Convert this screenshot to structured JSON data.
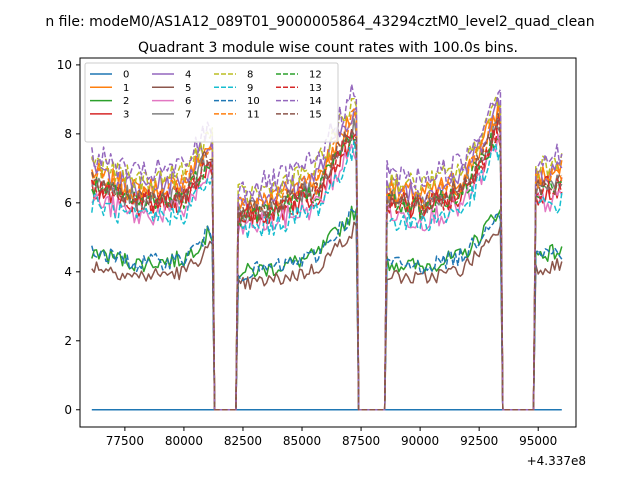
{
  "figure": {
    "suptitle": "n file: modeM0/AS1A12_089T01_9000005864_43294cztM0_level2_quad_clean"
  },
  "chart_data": {
    "type": "line",
    "title": "Quadrant 3 module wise count rates with 100.0s bins.",
    "xlabel": "",
    "ylabel": "",
    "offset_text": "+4.337e8",
    "xlim": [
      75600,
      96600
    ],
    "ylim": [
      -0.5,
      10.2
    ],
    "x_ticks": [
      77500,
      80000,
      82500,
      85000,
      87500,
      90000,
      92500,
      95000
    ],
    "x_tick_labels": [
      "77500",
      "80000",
      "82500",
      "85000",
      "87500",
      "90000",
      "92500",
      "95000"
    ],
    "y_ticks": [
      0,
      2,
      4,
      6,
      8,
      10
    ],
    "y_tick_labels": [
      "0",
      "2",
      "4",
      "6",
      "8",
      "10"
    ],
    "grid": false,
    "legend": {
      "placement": "top-left",
      "columns": 4
    },
    "x_start": 76100,
    "x_step": 100,
    "gaps": [
      [
        81200,
        82300
      ],
      [
        87300,
        88600
      ],
      [
        93400,
        94900
      ]
    ],
    "envelope": {
      "x": [
        76100,
        78000,
        80000,
        81100,
        82300,
        84000,
        85600,
        87200,
        88600,
        90000,
        91800,
        92400,
        93300,
        94900,
        96000
      ],
      "y": [
        1.0,
        0.92,
        0.95,
        1.12,
        0.86,
        0.9,
        0.97,
        1.25,
        0.93,
        0.9,
        0.97,
        1.07,
        1.26,
        0.98,
        1.0
      ]
    },
    "series": [
      {
        "name": "0",
        "color": "#1f77b4",
        "dash": "solid",
        "baseline": 0,
        "noise": 0
      },
      {
        "name": "1",
        "color": "#ff7f0e",
        "dash": "solid",
        "baseline": 6.9,
        "noise": 0.35
      },
      {
        "name": "2",
        "color": "#2ca02c",
        "dash": "solid",
        "baseline": 4.6,
        "noise": 0.25
      },
      {
        "name": "3",
        "color": "#d62728",
        "dash": "solid",
        "baseline": 6.4,
        "noise": 0.35
      },
      {
        "name": "4",
        "color": "#9467bd",
        "dash": "solid",
        "baseline": 7.0,
        "noise": 0.35
      },
      {
        "name": "5",
        "color": "#8c564b",
        "dash": "solid",
        "baseline": 4.2,
        "noise": 0.22
      },
      {
        "name": "6",
        "color": "#e377c2",
        "dash": "solid",
        "baseline": 6.1,
        "noise": 0.35
      },
      {
        "name": "7",
        "color": "#7f7f7f",
        "dash": "solid",
        "baseline": 6.6,
        "noise": 0.33
      },
      {
        "name": "8",
        "color": "#bcbd22",
        "dash": "dashed",
        "baseline": 7.2,
        "noise": 0.35
      },
      {
        "name": "9",
        "color": "#17becf",
        "dash": "dashed",
        "baseline": 6.0,
        "noise": 0.33
      },
      {
        "name": "10",
        "color": "#1f77b4",
        "dash": "dashed",
        "baseline": 4.6,
        "noise": 0.25
      },
      {
        "name": "11",
        "color": "#ff7f0e",
        "dash": "dashed",
        "baseline": 6.8,
        "noise": 0.35
      },
      {
        "name": "12",
        "color": "#2ca02c",
        "dash": "dashed",
        "baseline": 6.5,
        "noise": 0.33
      },
      {
        "name": "13",
        "color": "#d62728",
        "dash": "dashed",
        "baseline": 6.5,
        "noise": 0.35
      },
      {
        "name": "14",
        "color": "#9467bd",
        "dash": "dashed",
        "baseline": 7.4,
        "noise": 0.38
      },
      {
        "name": "15",
        "color": "#8c564b",
        "dash": "dashed",
        "baseline": 6.6,
        "noise": 0.33
      }
    ]
  }
}
